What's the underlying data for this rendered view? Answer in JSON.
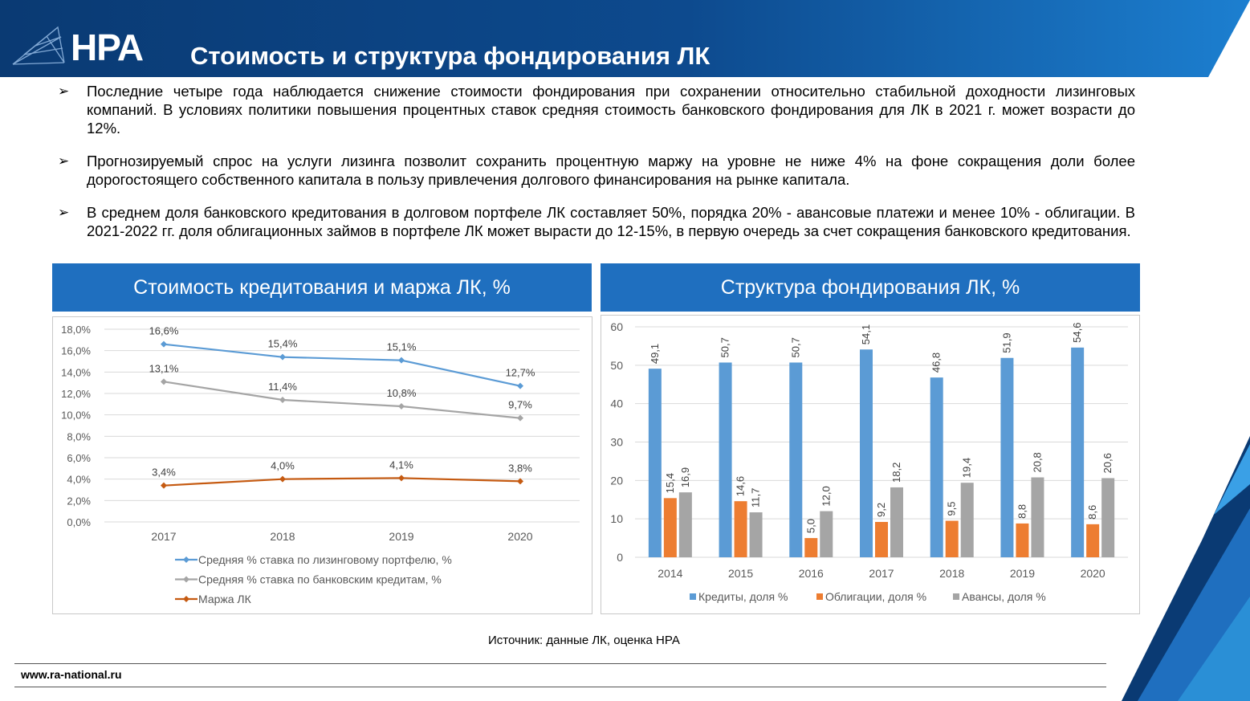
{
  "header": {
    "logo": "НРА",
    "title": "Стоимость и структура фондирования ЛК"
  },
  "bullets": [
    "Последние четыре года наблюдается снижение стоимости фондирования при сохранении относительно стабильной доходности лизинговых компаний.  В условиях политики повышения процентных ставок средняя стоимость банковского фондирования для ЛК в 2021 г. может возрасти до 12%.",
    "Прогнозируемый спрос на услуги лизинга позволит сохранить процентную маржу на уровне не ниже 4% на фоне сокращения доли более дорогостоящего собственного капитала  в пользу привлечения  долгового финансирования  на рынке капитала.",
    "В среднем доля банковского кредитования в долговом портфеле ЛК составляет 50%, порядка 20% - авансовые платежи и менее 10% - облигации. В 2021-2022 гг. доля облигационных займов в портфеле ЛК может вырасти до 12-15%, в первую очередь за счет сокращения  банковского кредитования."
  ],
  "chart_data": [
    {
      "type": "line",
      "title": "Стоимость кредитования и маржа ЛК, %",
      "categories": [
        "2017",
        "2018",
        "2019",
        "2020"
      ],
      "ylim": [
        0,
        18
      ],
      "yticks": [
        "0,0%",
        "2,0%",
        "4,0%",
        "6,0%",
        "8,0%",
        "10,0%",
        "12,0%",
        "14,0%",
        "16,0%",
        "18,0%"
      ],
      "grid": true,
      "legend": "bottom",
      "series": [
        {
          "name": "Средняя % ставка по лизинговому портфелю, %",
          "values": [
            16.6,
            15.4,
            15.1,
            12.7
          ],
          "labels": [
            "16,6%",
            "15,4%",
            "15,1%",
            "12,7%"
          ],
          "color": "#5b9bd5"
        },
        {
          "name": "Средняя % ставка по банковским кредитам, %",
          "values": [
            13.1,
            11.4,
            10.8,
            9.7
          ],
          "labels": [
            "13,1%",
            "11,4%",
            "10,8%",
            "9,7%"
          ],
          "color": "#a5a5a5"
        },
        {
          "name": "Маржа ЛК",
          "values": [
            3.4,
            4.0,
            4.1,
            3.8
          ],
          "labels": [
            "3,4%",
            "4,0%",
            "4,1%",
            "3,8%"
          ],
          "color": "#c55a11"
        }
      ]
    },
    {
      "type": "bar",
      "title": "Структура фондирования ЛК, %",
      "categories": [
        "2014",
        "2015",
        "2016",
        "2017",
        "2018",
        "2019",
        "2020"
      ],
      "ylim": [
        0,
        60
      ],
      "yticks": [
        "0",
        "10",
        "20",
        "30",
        "40",
        "50",
        "60"
      ],
      "grid": true,
      "legend": "bottom",
      "series": [
        {
          "name": "Кредиты, доля  %",
          "values": [
            49.1,
            50.7,
            50.7,
            54.1,
            46.8,
            51.9,
            54.6
          ],
          "labels": [
            "49,1",
            "50,7",
            "50,7",
            "54,1",
            "46,8",
            "51,9",
            "54,6"
          ],
          "color": "#5b9bd5"
        },
        {
          "name": "Облигации, доля %",
          "values": [
            15.4,
            14.6,
            5.0,
            9.2,
            9.5,
            8.8,
            8.6
          ],
          "labels": [
            "15,4",
            "14,6",
            "5,0",
            "9,2",
            "9,5",
            "8,8",
            "8,6"
          ],
          "color": "#ed7d31"
        },
        {
          "name": "Авансы, доля  %",
          "values": [
            16.9,
            11.7,
            12.0,
            18.2,
            19.4,
            20.8,
            20.6
          ],
          "labels": [
            "16,9",
            "11,7",
            "12,0",
            "18,2",
            "19,4",
            "20,8",
            "20,6"
          ],
          "color": "#a5a5a5"
        }
      ]
    }
  ],
  "source": "Источник:  данные ЛК, оценка НРА",
  "website": "www.ra-national.ru",
  "colors": {
    "brand_dark": "#0a3f7a",
    "brand": "#1f6fbf",
    "accent": "#2a8fd6"
  }
}
